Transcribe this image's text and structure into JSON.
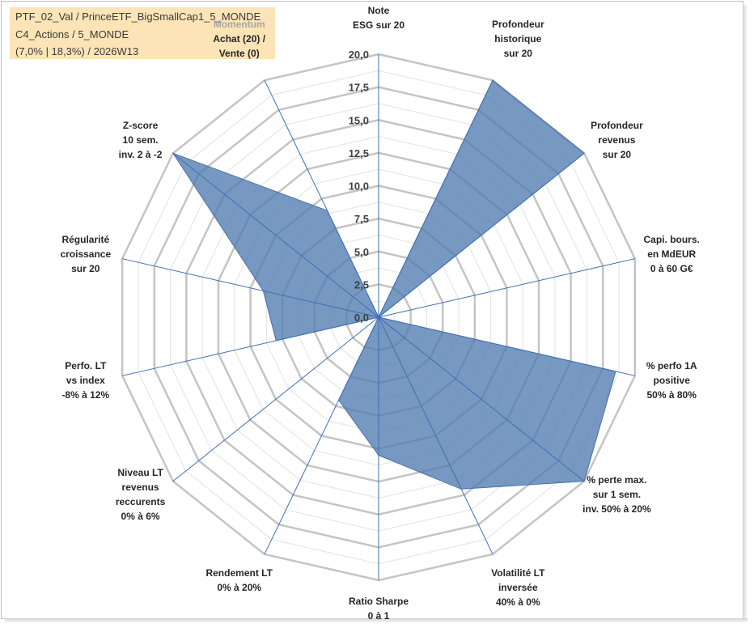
{
  "header": {
    "lines": [
      "PTF_02_Val / PrinceETF_BigSmallCap1_5_MONDE",
      "C4_Actions / 5_MONDE",
      "(7,0% | 18,3%) / 2026W13"
    ]
  },
  "chart_data": {
    "type": "radar",
    "title": "",
    "rlim": [
      0,
      20
    ],
    "ticks": [
      "0,0",
      "2,5",
      "5,0",
      "7,5",
      "10,0",
      "12,5",
      "15,0",
      "17,5",
      "20,0"
    ],
    "grid": true,
    "axes": [
      {
        "lines": [
          "Note",
          "ESG sur 20"
        ]
      },
      {
        "lines": [
          "Profondeur",
          "historique",
          "sur 20"
        ]
      },
      {
        "lines": [
          "Profondeur",
          "revenus",
          "sur 20"
        ]
      },
      {
        "lines": [
          "Capi. bours.",
          "en MdEUR",
          "0 à 60 G€"
        ]
      },
      {
        "lines": [
          "% perfo 1A",
          "positive",
          "50% à 80%"
        ]
      },
      {
        "lines": [
          "% perte max.",
          "sur 1 sem.",
          "inv. 50% à 20%"
        ]
      },
      {
        "lines": [
          "Volatilité LT",
          "inversée",
          "40% à 0%"
        ]
      },
      {
        "lines": [
          "Ratio Sharpe",
          "0 à 1"
        ]
      },
      {
        "lines": [
          "Rendement LT",
          "0% à 20%"
        ]
      },
      {
        "lines": [
          "Niveau LT",
          "revenus",
          "reccurents",
          "0% à 6%"
        ]
      },
      {
        "lines": [
          "Perfo. LT",
          "vs index",
          "-8% à 12%"
        ]
      },
      {
        "lines": [
          "Régularité",
          "croissance",
          "sur 20"
        ]
      },
      {
        "lines": [
          "Z-score",
          "10 sem.",
          "inv. 2 à -2"
        ]
      },
      {
        "lines": [
          "Momentum",
          "Achat (20) /",
          "Vente (0)"
        ]
      }
    ],
    "series": [
      {
        "values": [
          0,
          20,
          20,
          0,
          18.5,
          20,
          14.5,
          10.5,
          7.0,
          0,
          8.0,
          9.0,
          20,
          9.0
        ],
        "color": "#4f7bb0"
      }
    ]
  }
}
